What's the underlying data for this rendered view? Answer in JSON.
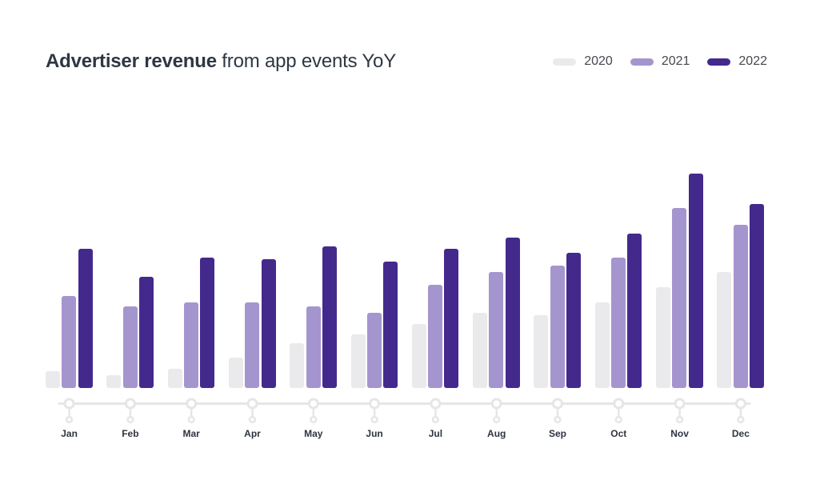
{
  "header": {
    "title_bold": "Advertiser revenue",
    "title_regular": " from app events YoY"
  },
  "chart_data": {
    "type": "bar",
    "title": "Advertiser revenue from app events YoY",
    "categories": [
      "Jan",
      "Feb",
      "Mar",
      "Apr",
      "May",
      "Jun",
      "Jul",
      "Aug",
      "Sep",
      "Oct",
      "Nov",
      "Dec"
    ],
    "series": [
      {
        "name": "2020",
        "color": "#EAEAEC",
        "values": [
          8,
          6,
          9,
          14,
          21,
          25,
          30,
          35,
          34,
          40,
          47,
          54
        ]
      },
      {
        "name": "2021",
        "color": "#A595CE",
        "values": [
          43,
          38,
          40,
          40,
          38,
          35,
          48,
          54,
          57,
          61,
          84,
          76
        ]
      },
      {
        "name": "2022",
        "color": "#44298D",
        "values": [
          65,
          52,
          61,
          60,
          66,
          59,
          65,
          70,
          63,
          72,
          100,
          86
        ]
      }
    ],
    "ylim": [
      0,
      100
    ],
    "legend_position": "top-right",
    "grid": false,
    "note": "No y-axis shown; values estimated relative to tallest bar (Nov 2022 = 100)."
  },
  "colors": {
    "axis": "#E6E6E9",
    "title_text": "#2E3742",
    "month_label_text": "#2F3440",
    "legend_text": "#47474F",
    "background": "#FFFFFF"
  }
}
